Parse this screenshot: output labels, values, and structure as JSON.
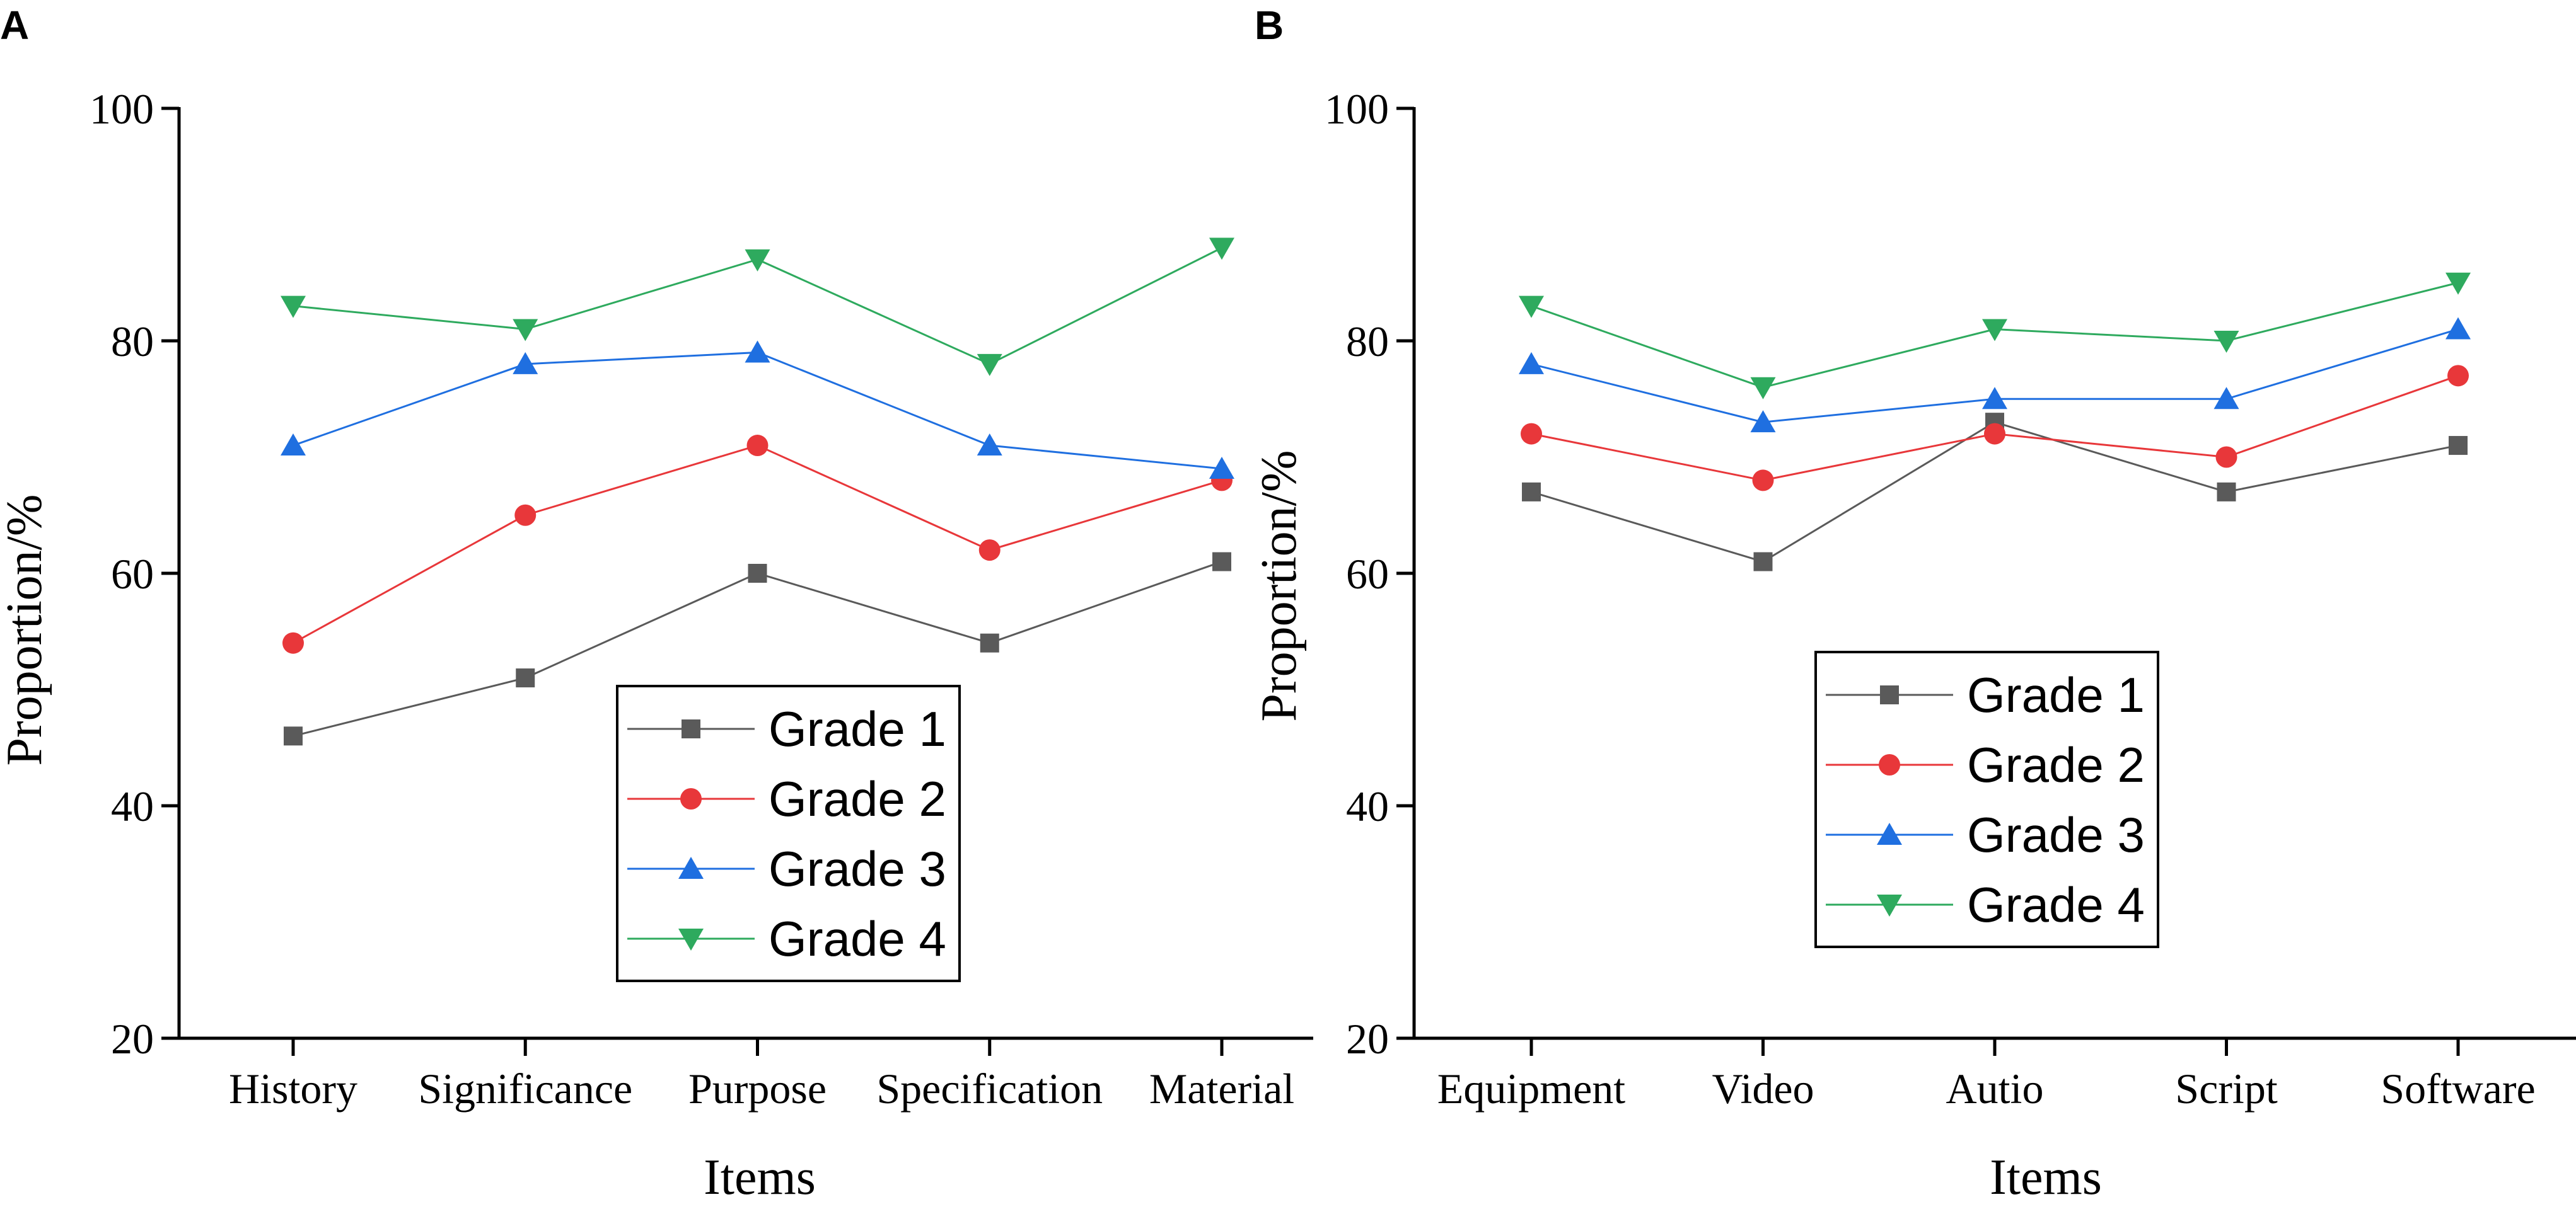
{
  "figure": {
    "panel_letters": [
      "A",
      "B"
    ]
  },
  "chart_data": [
    {
      "type": "line",
      "panel": "A",
      "title": "",
      "xlabel": "Items",
      "ylabel": "Proportion/%",
      "ylim": [
        20,
        100
      ],
      "yticks": [
        20,
        40,
        60,
        80,
        100
      ],
      "categories": [
        "History",
        "Significance",
        "Purpose",
        "Specification",
        "Material"
      ],
      "legend_position": "bottom-center",
      "series": [
        {
          "name": "Grade 1",
          "color": "#5a5a5a",
          "marker": "square",
          "values": [
            46,
            51,
            60,
            54,
            61
          ]
        },
        {
          "name": "Grade 2",
          "color": "#e8373a",
          "marker": "circle",
          "values": [
            54,
            65,
            71,
            62,
            68
          ]
        },
        {
          "name": "Grade 3",
          "color": "#1f6fe0",
          "marker": "triangle-up",
          "values": [
            71,
            78,
            79,
            71,
            69
          ]
        },
        {
          "name": "Grade 4",
          "color": "#2eaa5e",
          "marker": "triangle-down",
          "values": [
            83,
            81,
            87,
            78,
            88
          ]
        }
      ]
    },
    {
      "type": "line",
      "panel": "B",
      "title": "",
      "xlabel": "Items",
      "ylabel": "Proportion/%",
      "ylim": [
        20,
        100
      ],
      "yticks": [
        20,
        40,
        60,
        80,
        100
      ],
      "categories": [
        "Equipment",
        "Video",
        "Autio",
        "Script",
        "Software"
      ],
      "legend_position": "center",
      "series": [
        {
          "name": "Grade 1",
          "color": "#5a5a5a",
          "marker": "square",
          "values": [
            67,
            61,
            73,
            67,
            71
          ]
        },
        {
          "name": "Grade 2",
          "color": "#e8373a",
          "marker": "circle",
          "values": [
            72,
            68,
            72,
            70,
            77
          ]
        },
        {
          "name": "Grade 3",
          "color": "#1f6fe0",
          "marker": "triangle-up",
          "values": [
            78,
            73,
            75,
            75,
            81
          ]
        },
        {
          "name": "Grade 4",
          "color": "#2eaa5e",
          "marker": "triangle-down",
          "values": [
            83,
            76,
            81,
            80,
            85
          ]
        }
      ]
    }
  ]
}
